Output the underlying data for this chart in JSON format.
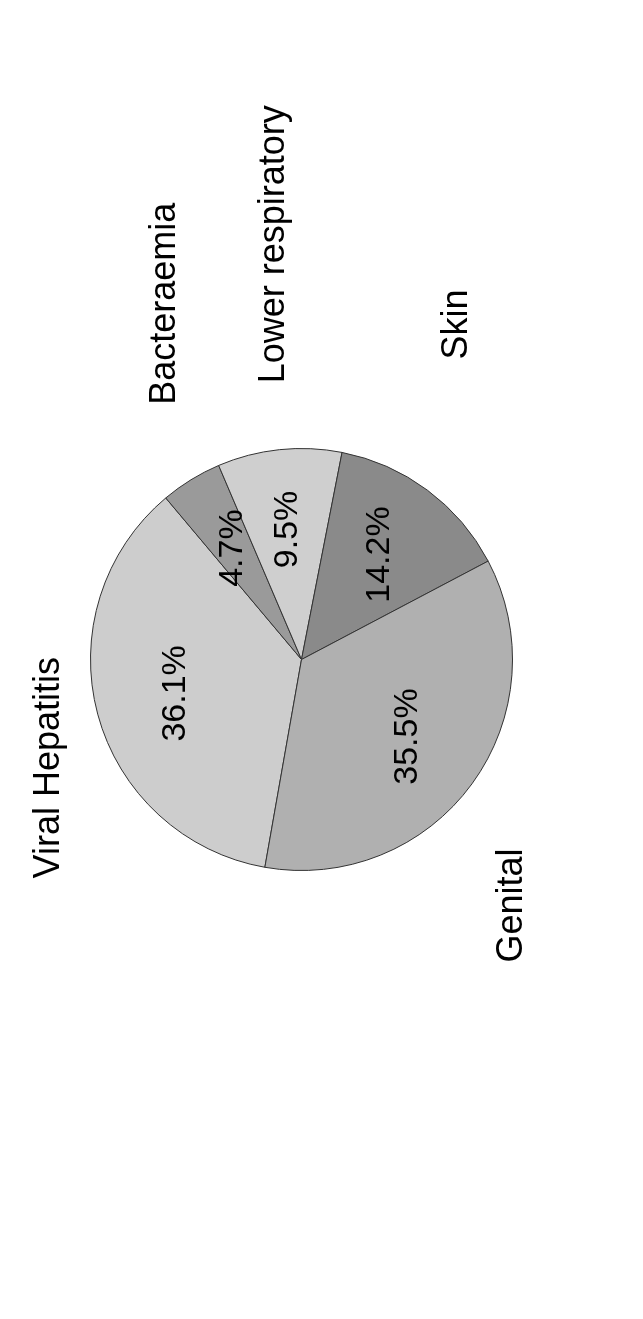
{
  "chart_data": {
    "type": "pie",
    "categories": [
      "Viral Hepatitis",
      "Bacteraemia",
      "Lower respiratory",
      "Skin",
      "Genital"
    ],
    "values": [
      36.1,
      4.7,
      9.5,
      14.2,
      35.5
    ],
    "colors": [
      "#cdcdcd",
      "#9a9a9a",
      "#cfcfcf",
      "#8a8a8a",
      "#b0b0b0"
    ],
    "value_labels": [
      "36.1%",
      "4.7%",
      "9.5%",
      "14.2%",
      "35.5%"
    ],
    "legend": false
  }
}
